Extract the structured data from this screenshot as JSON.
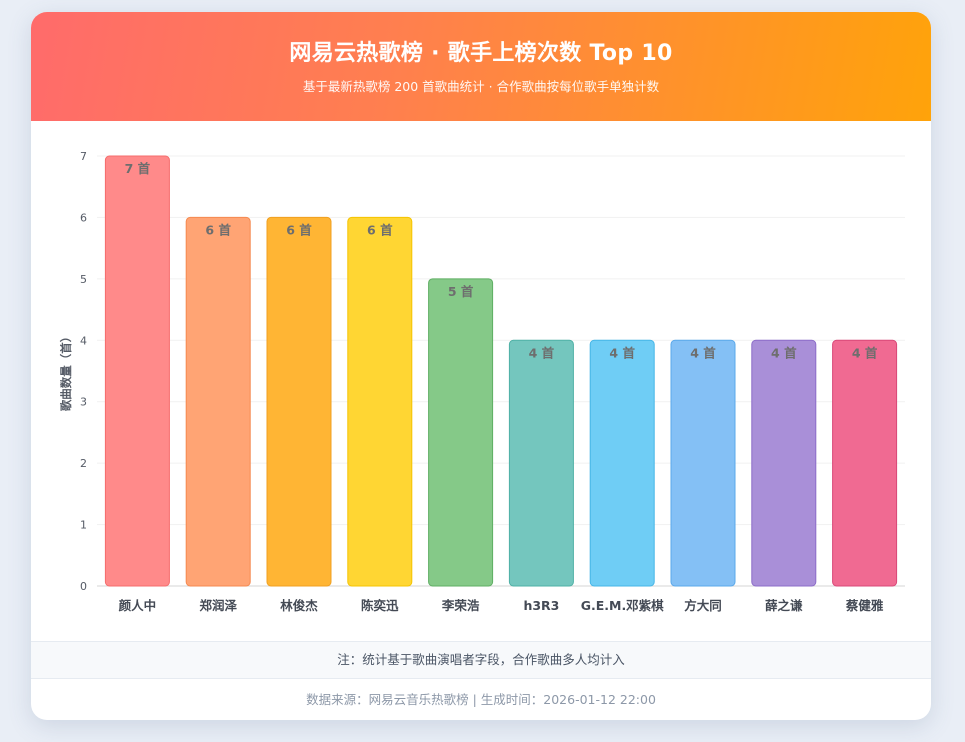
{
  "header": {
    "title": "网易云热歌榜 · 歌手上榜次数 Top 10",
    "subtitle": "基于最新热歌榜 200 首歌曲统计 · 合作歌曲按每位歌手单独计数"
  },
  "note": "注：统计基于歌曲演唱者字段，合作歌曲多人均计入",
  "footer": "数据来源：网易云音乐热歌榜 | 生成时间：2026-01-12 22:00",
  "chart_data": {
    "type": "bar",
    "title": "网易云热歌榜 · 歌手上榜次数 Top 10",
    "xlabel": "",
    "ylabel": "歌曲数量（首）",
    "ylim": [
      0,
      7
    ],
    "yticks": [
      0,
      1,
      2,
      3,
      4,
      5,
      6,
      7
    ],
    "grid": true,
    "categories": [
      "颜人中",
      "郑润泽",
      "林俊杰",
      "陈奕迅",
      "李荣浩",
      "h3R3",
      "G.E.M.邓紫棋",
      "方大同",
      "薛之谦",
      "蔡健雅"
    ],
    "values": [
      7,
      6,
      6,
      6,
      5,
      4,
      4,
      4,
      4,
      4
    ],
    "value_labels": [
      "7 首",
      "6 首",
      "6 首",
      "6 首",
      "5 首",
      "4 首",
      "4 首",
      "4 首",
      "4 首",
      "4 首"
    ],
    "colors": [
      "#ff8a8a",
      "#ffa474",
      "#ffb534",
      "#ffd633",
      "#85c988",
      "#74c6be",
      "#6fcdf5",
      "#84c0f5",
      "#a98fd8",
      "#f06a92"
    ],
    "border_colors": [
      "#f56c6c",
      "#f5894f",
      "#f0a020",
      "#f5c400",
      "#5fae63",
      "#4eb0a5",
      "#45b5e6",
      "#5aa8ea",
      "#8c6cc8",
      "#d94878"
    ]
  }
}
